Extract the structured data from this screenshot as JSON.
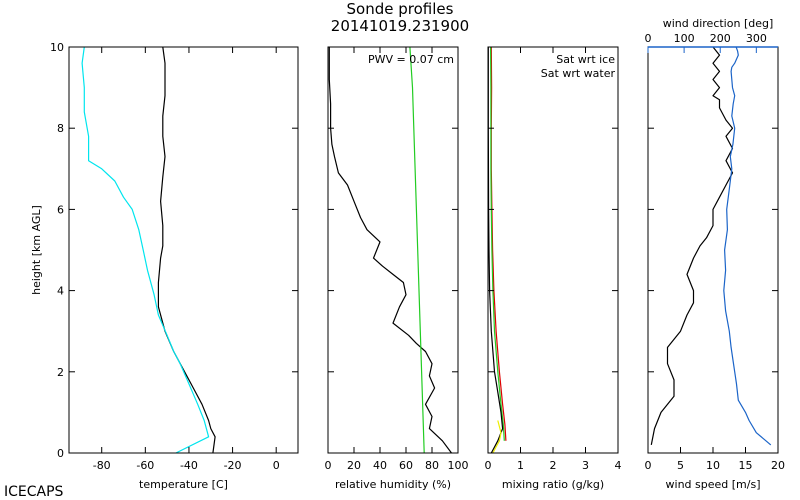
{
  "figure": {
    "title": "Sonde profiles",
    "subtitle": "20141019.231900",
    "site": "ICECAPS",
    "ylabel": "height [km AGL]"
  },
  "chart_data": [
    {
      "type": "line",
      "id": "temperature",
      "xlabel": "temperature [C]",
      "ylabel": "height [km AGL]",
      "xlim": [
        -95,
        10
      ],
      "ylim": [
        0,
        10
      ],
      "xticks": [
        -80,
        -60,
        -40,
        -20,
        0
      ],
      "yticks": [
        0,
        2,
        4,
        6,
        8,
        10
      ],
      "grid": false,
      "series": [
        {
          "color": "#000000",
          "x": [
            -29,
            -28,
            -30,
            -31,
            -34,
            -38,
            -42,
            -47,
            -51,
            -54,
            -54,
            -53,
            -52,
            -52,
            -53,
            -52,
            -51,
            -52,
            -52,
            -51,
            -51,
            -51,
            -52
          ],
          "y": [
            0.0,
            0.4,
            0.6,
            0.8,
            1.2,
            1.6,
            2.0,
            2.5,
            3.0,
            3.6,
            4.2,
            4.8,
            5.1,
            5.6,
            6.2,
            6.8,
            7.3,
            7.8,
            8.3,
            8.8,
            9.2,
            9.6,
            10.0
          ]
        },
        {
          "color": "#00e5ee",
          "x": [
            -46,
            -31,
            -33,
            -36,
            -40,
            -44,
            -47,
            -50,
            -54,
            -56,
            -59,
            -61,
            -63,
            -66,
            -70,
            -74,
            -80,
            -86,
            -86,
            -88,
            -88,
            -89,
            -88
          ],
          "y": [
            0.0,
            0.4,
            0.8,
            1.2,
            1.7,
            2.2,
            2.5,
            2.9,
            3.4,
            3.9,
            4.5,
            5.0,
            5.5,
            6.0,
            6.3,
            6.7,
            7.0,
            7.2,
            7.8,
            8.4,
            9.0,
            9.6,
            10.0
          ]
        }
      ]
    },
    {
      "type": "line",
      "id": "relative_humidity",
      "xlabel": "relative humidity (%)",
      "xlim": [
        0,
        100
      ],
      "ylim": [
        0,
        10
      ],
      "xticks": [
        0,
        20,
        40,
        60,
        80,
        100
      ],
      "yticks": [
        0,
        2,
        4,
        6,
        8,
        10
      ],
      "annotations": [
        "PWV = 0.07 cm"
      ],
      "grid": false,
      "series": [
        {
          "color": "#000000",
          "x": [
            95,
            88,
            78,
            80,
            75,
            82,
            78,
            80,
            75,
            68,
            62,
            50,
            55,
            60,
            58,
            50,
            42,
            35,
            40,
            30,
            25,
            20,
            15,
            8,
            5,
            3,
            2,
            2,
            1,
            1
          ],
          "y": [
            0.0,
            0.3,
            0.6,
            0.9,
            1.2,
            1.6,
            1.9,
            2.2,
            2.5,
            2.7,
            2.9,
            3.2,
            3.6,
            3.9,
            4.2,
            4.4,
            4.6,
            4.8,
            5.2,
            5.5,
            5.8,
            6.2,
            6.6,
            6.9,
            7.3,
            7.6,
            8.0,
            8.6,
            9.2,
            10.0
          ]
        },
        {
          "color": "#22cc22",
          "x": [
            74,
            73,
            72,
            71,
            70,
            69,
            68,
            67,
            66,
            65,
            64,
            63
          ],
          "y": [
            0,
            1,
            2,
            3,
            4,
            5,
            6,
            7,
            8,
            9,
            9.5,
            10
          ]
        }
      ]
    },
    {
      "type": "line",
      "id": "mixing_ratio",
      "xlabel": "mixing ratio (g/kg)",
      "xlim": [
        0,
        4
      ],
      "ylim": [
        0,
        10
      ],
      "xticks": [
        0,
        1,
        2,
        3,
        4
      ],
      "yticks": [
        0,
        2,
        4,
        6,
        8,
        10
      ],
      "legend": [
        {
          "label": "Sat wrt ice",
          "color": "#22cc22"
        },
        {
          "label": "Sat wrt water",
          "color": "#dd0000"
        }
      ],
      "legend_position": "top-right",
      "grid": false,
      "series": [
        {
          "color": "#dd0000",
          "x": [
            0.55,
            0.52,
            0.45,
            0.35,
            0.25,
            0.18,
            0.14,
            0.12,
            0.1,
            0.1,
            0.11,
            0.1
          ],
          "y": [
            0.3,
            0.7,
            1.2,
            2.0,
            3.0,
            4.0,
            5.0,
            6.0,
            7.0,
            8.0,
            9.0,
            10.0
          ]
        },
        {
          "color": "#22cc22",
          "x": [
            0.5,
            0.47,
            0.4,
            0.3,
            0.2,
            0.15,
            0.12,
            0.1,
            0.09,
            0.09,
            0.09,
            0.08
          ],
          "y": [
            0.3,
            0.7,
            1.2,
            2.0,
            3.0,
            4.0,
            5.0,
            6.0,
            7.0,
            8.0,
            9.0,
            10.0
          ]
        },
        {
          "color": "#000000",
          "x": [
            0.1,
            0.3,
            0.45,
            0.4,
            0.3,
            0.2,
            0.1,
            0.05,
            0.03,
            0.02,
            0.01,
            0.01
          ],
          "y": [
            0.0,
            0.3,
            0.6,
            1.0,
            1.5,
            2.0,
            3.0,
            4.0,
            5.0,
            6.0,
            8.0,
            10.0
          ]
        },
        {
          "color": "#eeee00",
          "x": [
            0.15,
            0.25,
            0.35,
            0.4,
            0.3
          ],
          "y": [
            0.0,
            0.15,
            0.3,
            0.5,
            0.8
          ]
        }
      ]
    },
    {
      "type": "line",
      "id": "wind",
      "xlabel": "wind speed [m/s]",
      "xlim": [
        0,
        20
      ],
      "ylim": [
        0,
        10
      ],
      "xticks": [
        0,
        5,
        10,
        15,
        20
      ],
      "yticks": [
        0,
        2,
        4,
        6,
        8,
        10
      ],
      "top_axis": {
        "label": "wind direction [deg]",
        "lim": [
          0,
          360
        ],
        "ticks": [
          0,
          100,
          200,
          300
        ],
        "color": "#1b64c8"
      },
      "grid": false,
      "series": [
        {
          "name": "wind speed",
          "color": "#000000",
          "axis": "bottom",
          "x": [
            0.5,
            1,
            2,
            4,
            4,
            3,
            3,
            5,
            6,
            7,
            7,
            6,
            7,
            8,
            9,
            10,
            10,
            11,
            12,
            13,
            12,
            13,
            12,
            13,
            12,
            11,
            11,
            10,
            11,
            10,
            11,
            10,
            11,
            10
          ],
          "y": [
            0.2,
            0.6,
            1.0,
            1.4,
            1.8,
            2.2,
            2.6,
            3.0,
            3.4,
            3.7,
            4.0,
            4.4,
            4.8,
            5.1,
            5.3,
            5.6,
            6.0,
            6.3,
            6.6,
            6.9,
            7.2,
            7.5,
            7.8,
            8.0,
            8.2,
            8.5,
            8.7,
            8.8,
            9.0,
            9.2,
            9.4,
            9.6,
            9.8,
            10.0
          ]
        },
        {
          "name": "wind direction",
          "color": "#1b64c8",
          "axis": "top",
          "x": [
            340,
            300,
            280,
            270,
            250,
            245,
            240,
            235,
            230,
            225,
            215,
            210,
            215,
            212,
            220,
            218,
            225,
            232,
            228,
            235,
            240,
            232,
            236,
            240,
            234,
            232,
            230,
            232,
            240,
            250,
            248,
            244
          ],
          "y": [
            0.2,
            0.5,
            0.8,
            1.0,
            1.3,
            1.7,
            2.0,
            2.3,
            2.6,
            3.0,
            3.5,
            4.0,
            4.5,
            5.0,
            5.5,
            6.0,
            6.5,
            7.0,
            7.3,
            7.6,
            8.0,
            8.3,
            8.6,
            8.8,
            9.0,
            9.2,
            9.4,
            9.5,
            9.6,
            9.8,
            9.9,
            10.0
          ]
        }
      ]
    }
  ]
}
